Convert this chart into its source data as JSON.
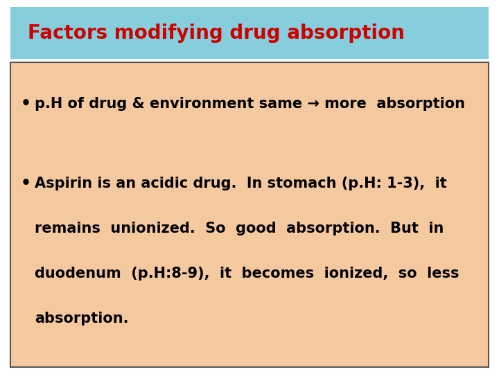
{
  "title": "Factors modifying drug absorption",
  "title_color": "#cc0000",
  "title_bg_color": "#87CEDC",
  "body_bg_color": "#F5C9A0",
  "body_border_color": "#555555",
  "bullet1": "p.H of drug & environment same → more  absorption",
  "bullet2_line1": "Aspirin is an acidic drug.  In stomach (p.H: 1-3),  it",
  "bullet2_line2": "remains  unionized.  So  good  absorption.  But  in",
  "bullet2_line3": "duodenum  (p.H:8-9),  it  becomes  ionized,  so  less",
  "bullet2_line4": "absorption.",
  "text_color": "#000000",
  "bullet_color": "#000000",
  "fig_bg_color": "#ffffff",
  "title_fontsize": 20,
  "body_fontsize": 15,
  "fig_width": 7.2,
  "fig_height": 5.4
}
